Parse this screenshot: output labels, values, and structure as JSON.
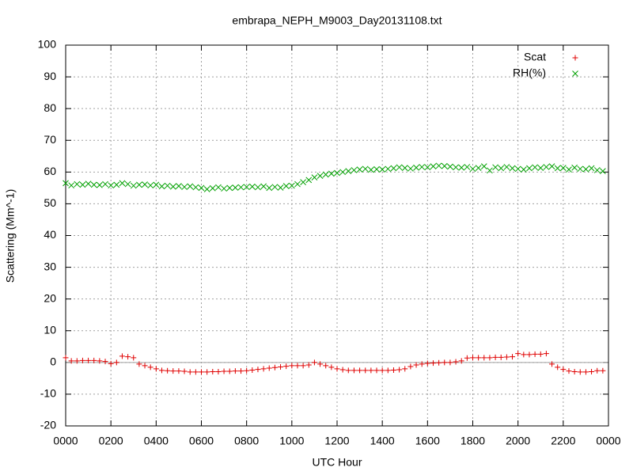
{
  "chart_data": {
    "type": "scatter",
    "title": "embrapa_NEPH_M9003_Day20131108.txt",
    "xlabel": "UTC Hour",
    "ylabel": "Scattering (Mm^-1)",
    "xlim": [
      0,
      24
    ],
    "ylim": [
      -20,
      100
    ],
    "xticks": [
      {
        "value": 0,
        "label": "0000"
      },
      {
        "value": 2,
        "label": "0200"
      },
      {
        "value": 4,
        "label": "0400"
      },
      {
        "value": 6,
        "label": "0600"
      },
      {
        "value": 8,
        "label": "0800"
      },
      {
        "value": 10,
        "label": "1000"
      },
      {
        "value": 12,
        "label": "1200"
      },
      {
        "value": 14,
        "label": "1400"
      },
      {
        "value": 16,
        "label": "1600"
      },
      {
        "value": 18,
        "label": "1800"
      },
      {
        "value": 20,
        "label": "2000"
      },
      {
        "value": 22,
        "label": "2200"
      },
      {
        "value": 24,
        "label": "0000"
      }
    ],
    "yticks": [
      -20,
      -10,
      0,
      10,
      20,
      30,
      40,
      50,
      60,
      70,
      80,
      90,
      100
    ],
    "grid": true,
    "zero_line": true,
    "legend": "top-right",
    "x": [
      0,
      0.25,
      0.5,
      0.75,
      1,
      1.25,
      1.5,
      1.75,
      2,
      2.25,
      2.5,
      2.75,
      3,
      3.25,
      3.5,
      3.75,
      4,
      4.25,
      4.5,
      4.75,
      5,
      5.25,
      5.5,
      5.75,
      6,
      6.25,
      6.5,
      6.75,
      7,
      7.25,
      7.5,
      7.75,
      8,
      8.25,
      8.5,
      8.75,
      9,
      9.25,
      9.5,
      9.75,
      10,
      10.25,
      10.5,
      10.75,
      11,
      11.25,
      11.5,
      11.75,
      12,
      12.25,
      12.5,
      12.75,
      13,
      13.25,
      13.5,
      13.75,
      14,
      14.25,
      14.5,
      14.75,
      15,
      15.25,
      15.5,
      15.75,
      16,
      16.25,
      16.5,
      16.75,
      17,
      17.25,
      17.5,
      17.75,
      18,
      18.25,
      18.5,
      18.75,
      19,
      19.25,
      19.5,
      19.75,
      20,
      20.25,
      20.5,
      20.75,
      21,
      21.25,
      21.5,
      21.75,
      22,
      22.25,
      22.5,
      22.75,
      23,
      23.25,
      23.5,
      23.75
    ],
    "series": [
      {
        "name": "Scat",
        "color": "#e00000",
        "marker": "+",
        "values": [
          1.5,
          0.5,
          0.5,
          0.6,
          0.6,
          0.6,
          0.5,
          0.3,
          -0.4,
          0,
          2,
          1.8,
          1.5,
          -0.5,
          -1,
          -1.5,
          -2,
          -2.5,
          -2.6,
          -2.7,
          -2.7,
          -2.8,
          -3,
          -3,
          -3,
          -3,
          -2.9,
          -2.9,
          -2.8,
          -2.8,
          -2.7,
          -2.7,
          -2.6,
          -2.4,
          -2.2,
          -2,
          -1.8,
          -1.6,
          -1.4,
          -1.2,
          -1,
          -1,
          -1,
          -0.8,
          0,
          -0.5,
          -1,
          -1.5,
          -2,
          -2.3,
          -2.5,
          -2.5,
          -2.5,
          -2.5,
          -2.5,
          -2.5,
          -2.5,
          -2.5,
          -2.4,
          -2.3,
          -2,
          -1.3,
          -0.8,
          -0.5,
          -0.3,
          -0.2,
          -0.1,
          0,
          0,
          0.2,
          0.5,
          1.4,
          1.5,
          1.5,
          1.5,
          1.5,
          1.6,
          1.6,
          1.7,
          1.8,
          2.8,
          2.5,
          2.5,
          2.6,
          2.6,
          2.8,
          -0.5,
          -1.5,
          -2.2,
          -2.7,
          -2.9,
          -3,
          -3,
          -2.9,
          -2.6,
          -2.6
        ]
      },
      {
        "name": "RH(%)",
        "color": "#00a000",
        "marker": "x",
        "values": [
          56.5,
          55.8,
          56.2,
          56,
          56.3,
          56,
          55.9,
          56.2,
          55.8,
          56,
          56.5,
          56.2,
          55.7,
          56,
          56.1,
          55.8,
          56,
          55.5,
          55.7,
          55.4,
          55.6,
          55.3,
          55.5,
          55.2,
          55,
          54.6,
          54.9,
          55.2,
          54.8,
          55,
          55.1,
          55.2,
          55.3,
          55.4,
          55.2,
          55.5,
          55,
          55.3,
          55.1,
          55.6,
          55.7,
          56.2,
          56.8,
          57.5,
          58.3,
          58.8,
          59.2,
          59.5,
          59.7,
          60,
          60.3,
          60.6,
          60.8,
          61,
          60.7,
          60.9,
          60.8,
          61,
          61.2,
          61.5,
          61.3,
          61.1,
          61.4,
          61.6,
          61.5,
          61.8,
          62,
          61.9,
          61.7,
          61.5,
          61.4,
          61.6,
          61,
          61.3,
          61.8,
          60.5,
          61.5,
          61.2,
          61.6,
          61.2,
          61,
          60.8,
          61.2,
          61.5,
          61.3,
          61.6,
          61.8,
          61.2,
          61.3,
          60.8,
          61.4,
          61,
          60.9,
          61.2,
          60.6,
          60.3
        ]
      }
    ]
  }
}
